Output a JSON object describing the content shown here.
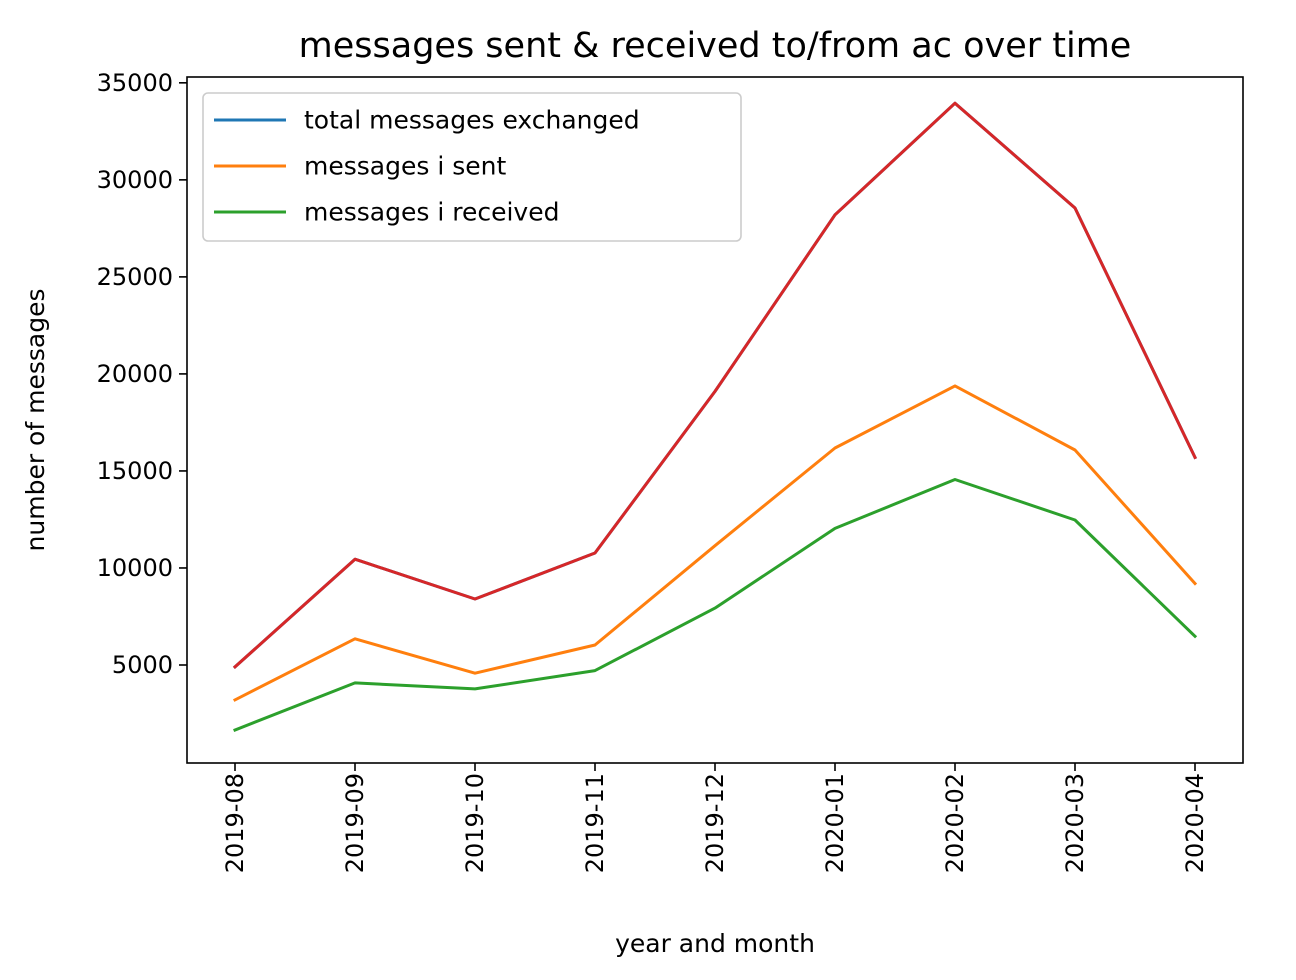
{
  "chart_data": {
    "type": "line",
    "title": "messages sent & received to/from ac over time",
    "xlabel": "year and month",
    "ylabel": "number of messages",
    "categories": [
      "2019-08",
      "2019-09",
      "2019-10",
      "2019-11",
      "2019-12",
      "2020-01",
      "2020-02",
      "2020-03",
      "2020-04"
    ],
    "y_ticks": [
      5000,
      10000,
      15000,
      20000,
      25000,
      30000,
      35000
    ],
    "y_tick_labels": [
      "5000",
      "10000",
      "15000",
      "20000",
      "25000",
      "30000",
      "35000"
    ],
    "ylim": [
      -50,
      35300
    ],
    "grid": false,
    "legend_position": "upper-left",
    "series": [
      {
        "name": "total messages exchanged",
        "color": "#1f77b4",
        "values": [
          4900,
          10450,
          8400,
          10770,
          19100,
          28200,
          33950,
          28550,
          15700
        ]
      },
      {
        "name": "messages i sent",
        "color": "#ff7f0e",
        "values": [
          3200,
          6350,
          4580,
          6030,
          11150,
          16180,
          19380,
          16080,
          9200
        ]
      },
      {
        "name": "messages i received",
        "color": "#2ca02c",
        "values": [
          1650,
          4080,
          3770,
          4710,
          7930,
          12040,
          14560,
          12470,
          6480
        ]
      },
      {
        "name": "",
        "color": "#d62728",
        "values": [
          4900,
          10450,
          8400,
          10770,
          19100,
          28200,
          33950,
          28550,
          15700
        ]
      }
    ]
  }
}
